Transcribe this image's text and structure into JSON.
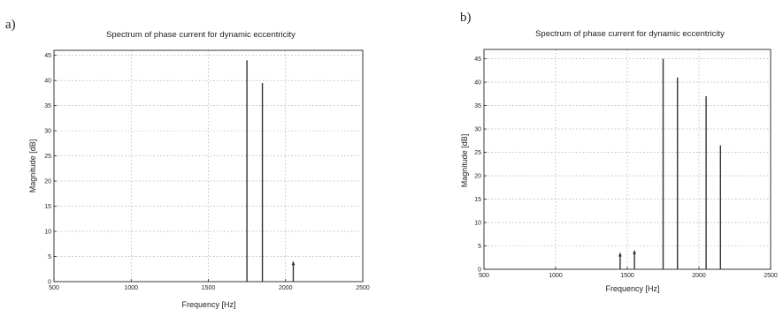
{
  "panels": [
    {
      "label": "a)",
      "chart_data": {
        "type": "bar",
        "title": "Spectrum of phase current for dynamic eccentricity",
        "xlabel": "Frequency [Hz]",
        "ylabel": "Magnitude [dB]",
        "xlim": [
          500,
          2500
        ],
        "ylim": [
          0,
          46
        ],
        "xticks": [
          500,
          1000,
          1500,
          2000,
          2500
        ],
        "yticks": [
          0,
          5,
          10,
          15,
          20,
          25,
          30,
          35,
          40,
          45
        ],
        "grid": true,
        "series": [
          {
            "x": [
              1750,
              1850,
              2050
            ],
            "values": [
              44,
              39.5,
              4
            ]
          }
        ]
      }
    },
    {
      "label": "b)",
      "chart_data": {
        "type": "bar",
        "title": "Spectrum of phase current for dynamic eccentricity",
        "xlabel": "Frequency [Hz]",
        "ylabel": "Magnitude [dB]",
        "xlim": [
          500,
          2500
        ],
        "ylim": [
          0,
          47
        ],
        "xticks": [
          500,
          1000,
          1500,
          2000,
          2500
        ],
        "yticks": [
          0,
          5,
          10,
          15,
          20,
          25,
          30,
          35,
          40,
          45
        ],
        "grid": true,
        "series": [
          {
            "x": [
              1450,
              1550,
              1750,
              1850,
              2050,
              2150
            ],
            "values": [
              3.5,
              4,
              45,
              41,
              37,
              26.5
            ]
          }
        ]
      }
    }
  ]
}
